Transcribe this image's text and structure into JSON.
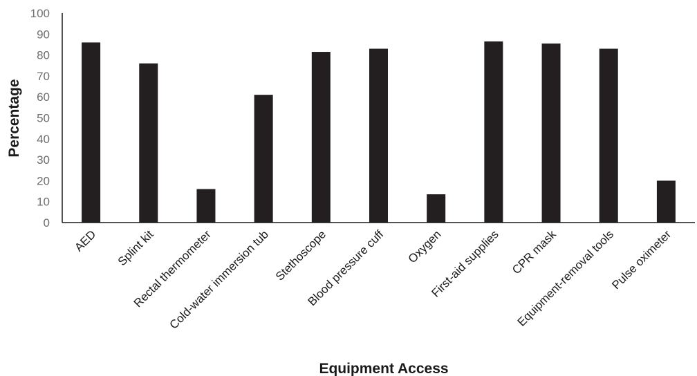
{
  "chart_data": {
    "type": "bar",
    "title": "",
    "xlabel": "Equipment Access",
    "ylabel": "Percentage",
    "ylim": [
      0,
      100
    ],
    "yticks": [
      0,
      10,
      20,
      30,
      40,
      50,
      60,
      70,
      80,
      90,
      100
    ],
    "grid": false,
    "legend": "none",
    "bar_color": "#231f20",
    "categories": [
      "AED",
      "Splint kit",
      "Rectal thermometer",
      "Cold-water immersion tub",
      "Stethoscope",
      "Blood pressure cuff",
      "Oxygen",
      "First-aid supplies",
      "CPR mask",
      "Equipment-removal tools",
      "Pulse oximeter"
    ],
    "values": [
      86,
      76,
      16,
      61,
      81.5,
      83,
      13.5,
      86.5,
      85.5,
      83,
      20
    ]
  }
}
